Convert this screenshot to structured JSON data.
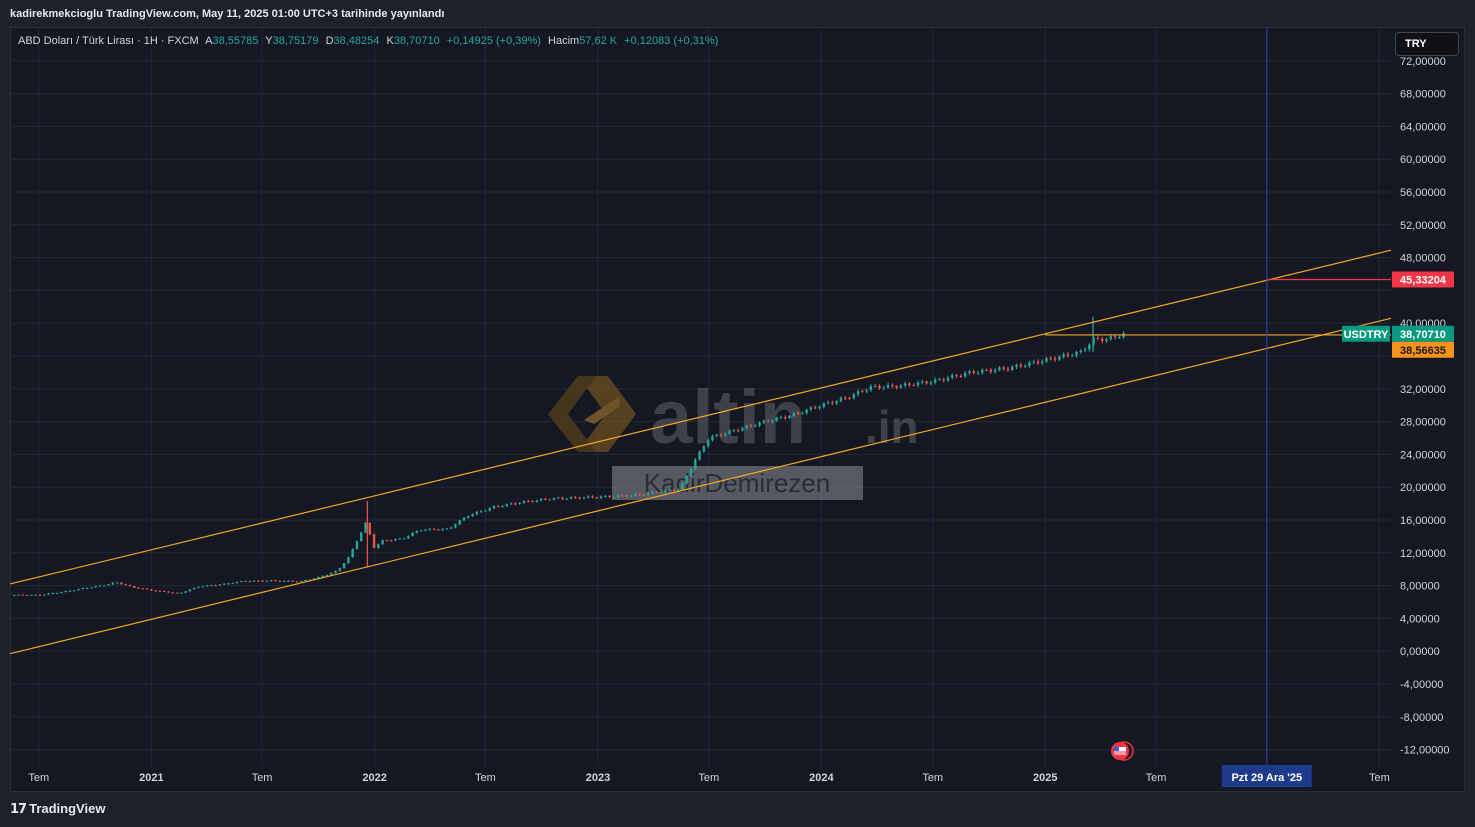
{
  "header": {
    "publisher_line": "kadirekmekcioglu TradingView.com, May 11, 2025 01:00 UTC+3 tarihinde yayınlandı"
  },
  "legend": {
    "symbol": "ABD Doları / Türk Lirası · 1H · FXCM",
    "open_label": "A",
    "open_value": "38,55785",
    "high_label": "Y",
    "high_value": "38,75179",
    "low_label": "D",
    "low_value": "38,48254",
    "close_label": "K",
    "close_value": "38,70710",
    "change": "+0,14925 (+0,39%)",
    "volume_label": "Hacim",
    "volume_value": "57,62 K",
    "volume_change": "+0,12083 (+0,31%)"
  },
  "currency_button": {
    "label": "TRY"
  },
  "watermark": {
    "logo_text": "altin",
    "logo_suffix": ".in",
    "author": "KadirDemirezen"
  },
  "footer": {
    "brand": "TradingView",
    "brand_mark": "17"
  },
  "colors": {
    "up": "#26a69a",
    "down": "#ef5350",
    "channel": "#f5a623",
    "background": "#151822",
    "price_badge": "#089981",
    "target_badge": "#f23645",
    "level_badge": "#f7931a",
    "date_badge": "#1e3a8a"
  },
  "chart_data": {
    "type": "candlestick",
    "symbol": "USDTRY",
    "y_axis": {
      "ylim": [
        -14,
        76
      ],
      "ticks": [
        72,
        68,
        64,
        60,
        56,
        52,
        48,
        40,
        32,
        28,
        24,
        20,
        16,
        12,
        8,
        4,
        0,
        -4,
        -8,
        -12
      ],
      "tick_labels": [
        "72,00000",
        "68,00000",
        "64,00000",
        "60,00000",
        "56,00000",
        "52,00000",
        "48,00000",
        "40,00000",
        "32,00000",
        "28,00000",
        "24,00000",
        "20,00000",
        "16,00000",
        "12,00000",
        "8,00000",
        "4,00000",
        "0,00000",
        "-4,00000",
        "-8,00000",
        "-12,00000"
      ]
    },
    "x_axis": {
      "xlim": [
        "2020-05-15",
        "2026-07-20"
      ],
      "ticks": [
        {
          "date": "2020-07-01",
          "label": "Tem",
          "bold": false
        },
        {
          "date": "2021-01-01",
          "label": "2021",
          "bold": true
        },
        {
          "date": "2021-07-01",
          "label": "Tem",
          "bold": false
        },
        {
          "date": "2022-01-01",
          "label": "2022",
          "bold": true
        },
        {
          "date": "2022-07-01",
          "label": "Tem",
          "bold": false
        },
        {
          "date": "2023-01-01",
          "label": "2023",
          "bold": true
        },
        {
          "date": "2023-07-01",
          "label": "Tem",
          "bold": false
        },
        {
          "date": "2024-01-01",
          "label": "2024",
          "bold": true
        },
        {
          "date": "2024-07-01",
          "label": "Tem",
          "bold": false
        },
        {
          "date": "2025-01-01",
          "label": "2025",
          "bold": true
        },
        {
          "date": "2025-07-01",
          "label": "Tem",
          "bold": false
        },
        {
          "date": "2026-07-01",
          "label": "Tem",
          "bold": false
        }
      ]
    },
    "grid": true,
    "price_series": [
      [
        "2020-05-15",
        6.85
      ],
      [
        "2020-07-01",
        6.85
      ],
      [
        "2020-08-15",
        7.3
      ],
      [
        "2020-09-15",
        7.7
      ],
      [
        "2020-10-20",
        8.1
      ],
      [
        "2020-11-05",
        8.4
      ],
      [
        "2020-12-01",
        7.8
      ],
      [
        "2021-01-01",
        7.45
      ],
      [
        "2021-02-15",
        7.05
      ],
      [
        "2021-03-20",
        7.9
      ],
      [
        "2021-05-01",
        8.2
      ],
      [
        "2021-06-01",
        8.55
      ],
      [
        "2021-07-15",
        8.6
      ],
      [
        "2021-09-01",
        8.5
      ],
      [
        "2021-10-01",
        9.0
      ],
      [
        "2021-11-01",
        9.8
      ],
      [
        "2021-11-20",
        11.5
      ],
      [
        "2021-12-05",
        13.8
      ],
      [
        "2021-12-20",
        16.0
      ],
      [
        "2021-12-28",
        12.5
      ],
      [
        "2022-01-15",
        13.5
      ],
      [
        "2022-02-15",
        13.7
      ],
      [
        "2022-03-15",
        14.8
      ],
      [
        "2022-05-01",
        14.9
      ],
      [
        "2022-06-01",
        16.5
      ],
      [
        "2022-07-15",
        17.6
      ],
      [
        "2022-09-01",
        18.2
      ],
      [
        "2022-10-15",
        18.6
      ],
      [
        "2023-01-01",
        18.8
      ],
      [
        "2023-03-01",
        19.0
      ],
      [
        "2023-05-15",
        19.8
      ],
      [
        "2023-06-10",
        23.5
      ],
      [
        "2023-07-01",
        26.0
      ],
      [
        "2023-08-15",
        27.0
      ],
      [
        "2023-10-01",
        28.0
      ],
      [
        "2023-11-15",
        28.8
      ],
      [
        "2024-01-01",
        30.0
      ],
      [
        "2024-02-15",
        31.0
      ],
      [
        "2024-03-20",
        32.2
      ],
      [
        "2024-05-01",
        32.3
      ],
      [
        "2024-07-01",
        32.9
      ],
      [
        "2024-09-01",
        34.0
      ],
      [
        "2024-11-01",
        34.5
      ],
      [
        "2025-01-01",
        35.5
      ],
      [
        "2025-03-01",
        36.5
      ],
      [
        "2025-03-20",
        38.0
      ],
      [
        "2025-04-15",
        38.1
      ],
      [
        "2025-05-10",
        38.7071
      ]
    ],
    "channel_lines": [
      {
        "name": "upper",
        "from": [
          "2020-05-15",
          8.2
        ],
        "to": [
          "2026-07-20",
          48.9
        ]
      },
      {
        "name": "lower",
        "from": [
          "2020-05-15",
          -0.3
        ],
        "to": [
          "2026-07-20",
          40.6
        ]
      }
    ],
    "horizontal_line": {
      "from": "2025-01-01",
      "to": "2026-07-20",
      "value": 38.56635
    },
    "target_line": {
      "from": "2025-12-29",
      "to": "2026-07-20",
      "value": 45.33204
    },
    "vertical_marker": {
      "date": "2025-12-29"
    },
    "price_labels": [
      {
        "value": 45.33204,
        "text": "45,33204",
        "kind": "target"
      },
      {
        "value": 38.7071,
        "text": "38,70710",
        "kind": "last",
        "tag": "USDTRY"
      },
      {
        "value": 38.56635,
        "text": "38,56635",
        "kind": "level"
      }
    ],
    "date_label": "Pzt 29 Ara '25"
  }
}
